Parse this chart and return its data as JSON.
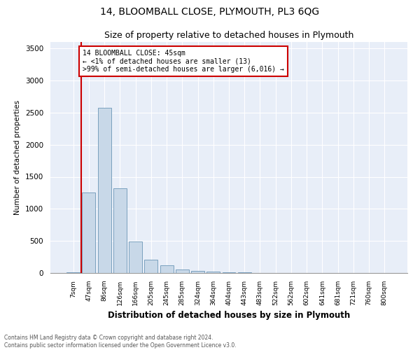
{
  "title": "14, BLOOMBALL CLOSE, PLYMOUTH, PL3 6QG",
  "subtitle": "Size of property relative to detached houses in Plymouth",
  "xlabel": "Distribution of detached houses by size in Plymouth",
  "ylabel": "Number of detached properties",
  "bar_color": "#c8d8e8",
  "bar_edge_color": "#7aa0be",
  "background_color": "#e8eef8",
  "annotation_box_color": "#cc0000",
  "annotation_text": "14 BLOOMBALL CLOSE: 45sqm\n← <1% of detached houses are smaller (13)\n>99% of semi-detached houses are larger (6,016) →",
  "footer_line1": "Contains HM Land Registry data © Crown copyright and database right 2024.",
  "footer_line2": "Contains public sector information licensed under the Open Government Licence v3.0.",
  "categories": [
    "7sqm",
    "47sqm",
    "86sqm",
    "126sqm",
    "166sqm",
    "205sqm",
    "245sqm",
    "285sqm",
    "324sqm",
    "364sqm",
    "404sqm",
    "443sqm",
    "483sqm",
    "522sqm",
    "562sqm",
    "602sqm",
    "641sqm",
    "681sqm",
    "721sqm",
    "760sqm",
    "800sqm"
  ],
  "values": [
    13,
    1250,
    2570,
    1320,
    490,
    210,
    120,
    60,
    35,
    20,
    10,
    8,
    5,
    2,
    1,
    1,
    0,
    0,
    0,
    0,
    0
  ],
  "ylim": [
    0,
    3600
  ],
  "yticks": [
    0,
    500,
    1000,
    1500,
    2000,
    2500,
    3000,
    3500
  ],
  "figwidth": 6.0,
  "figheight": 5.0,
  "dpi": 100
}
